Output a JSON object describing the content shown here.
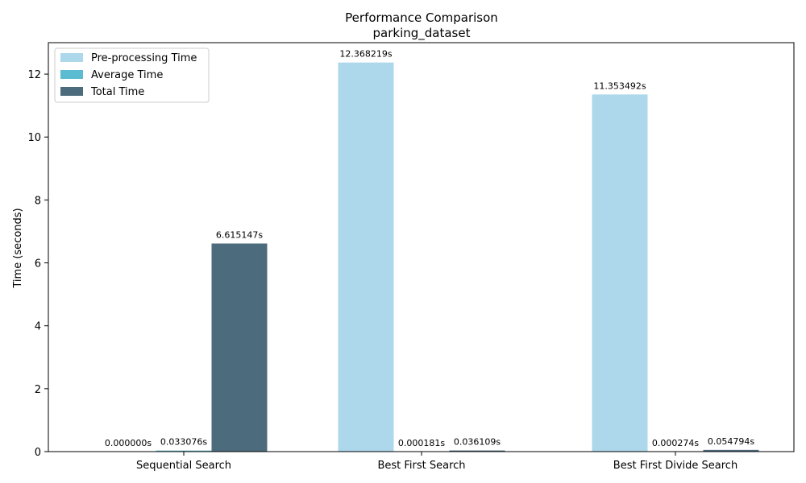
{
  "chart_data": {
    "type": "bar",
    "title": "Performance Comparison",
    "subtitle": "parking_dataset",
    "xlabel": "",
    "ylabel": "Time (seconds)",
    "ylim": [
      0,
      13
    ],
    "yticks": [
      0,
      2,
      4,
      6,
      8,
      10,
      12
    ],
    "grid": false,
    "legend_position": "top-left",
    "categories": [
      "Sequential Search",
      "Best First Search",
      "Best First Divide Search"
    ],
    "series": [
      {
        "name": "Pre-processing Time",
        "color": "#add8eb",
        "values": [
          0.0,
          12.368219,
          11.353492
        ],
        "labels": [
          "0.000000s",
          "12.368219s",
          "11.353492s"
        ]
      },
      {
        "name": "Average Time",
        "color": "#5bbcd1",
        "values": [
          0.033076,
          0.000181,
          0.000274
        ],
        "labels": [
          "0.033076s",
          "0.000181s",
          "0.000274s"
        ]
      },
      {
        "name": "Total Time",
        "color": "#4c6c7d",
        "values": [
          6.615147,
          0.036109,
          0.054794
        ],
        "labels": [
          "6.615147s",
          "0.036109s",
          "0.054794s"
        ]
      }
    ]
  }
}
